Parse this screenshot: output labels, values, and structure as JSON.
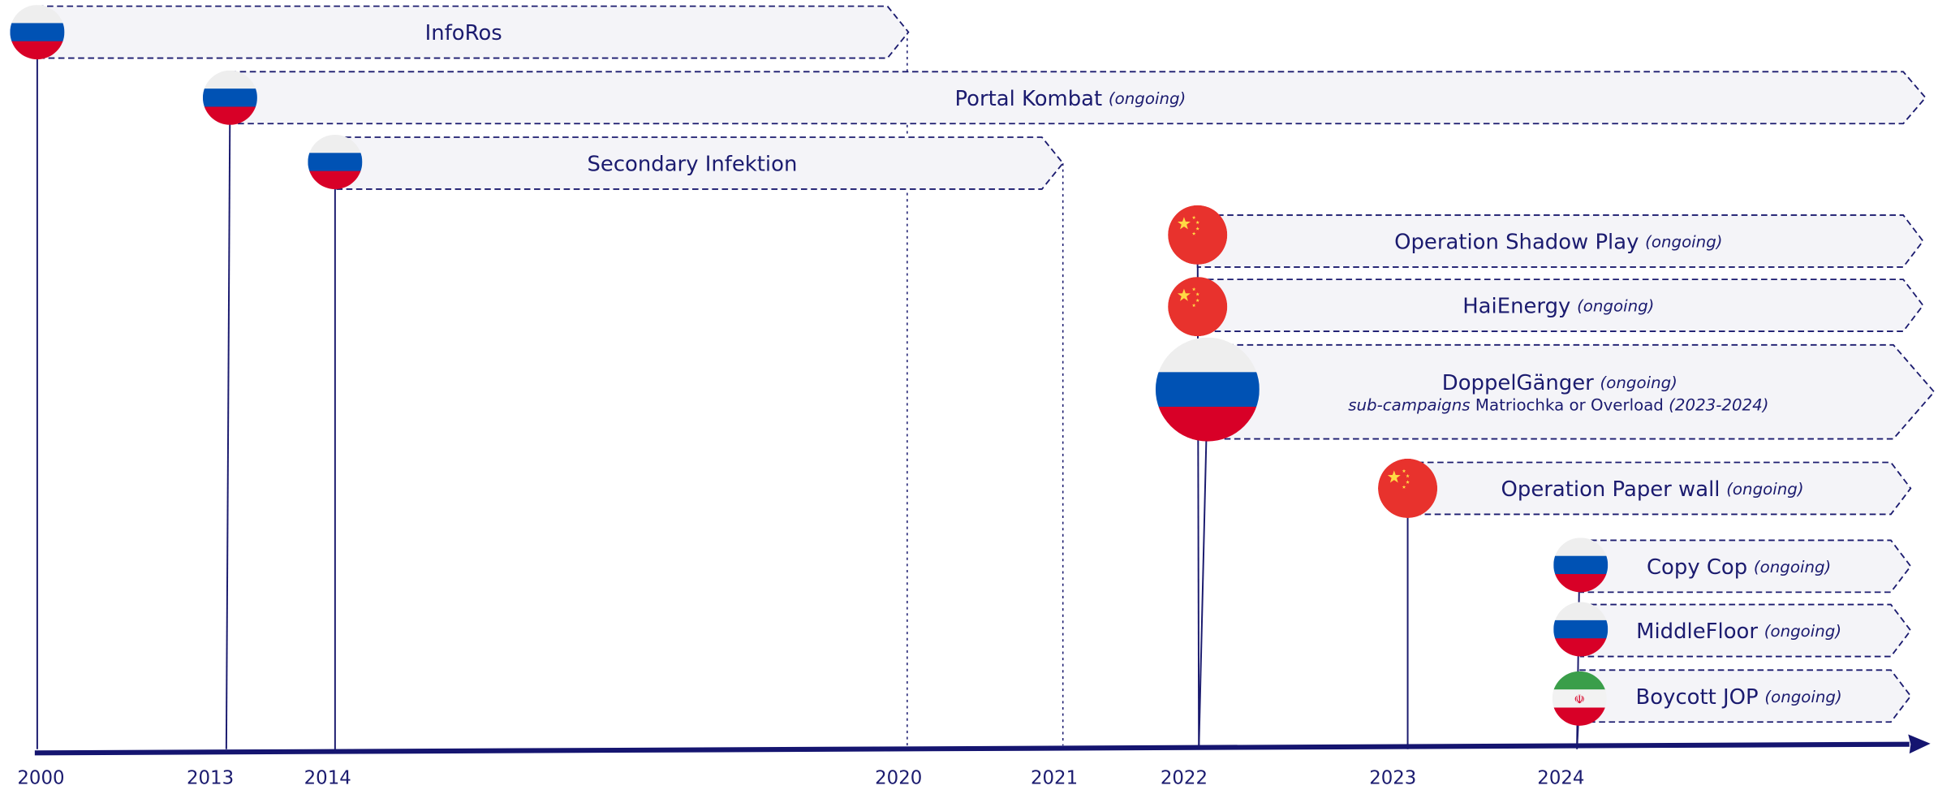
{
  "axis": {
    "years": [
      "2000",
      "2013",
      "2014",
      "2020",
      "2021",
      "2022",
      "2023",
      "2024"
    ]
  },
  "campaigns": [
    {
      "name": "InfoRos"
    },
    {
      "name": "Portal Kombat",
      "status": "(ongoing)"
    },
    {
      "name": "Secondary Infektion"
    },
    {
      "name": "Operation Shadow Play",
      "status": "(ongoing)"
    },
    {
      "name": "HaiEnergy",
      "status": "(ongoing)"
    },
    {
      "name": "DoppelGänger",
      "status": "(ongoing)",
      "detail": {
        "prefix": "sub-campaigns",
        "text": "Matriochka or Overload",
        "period": "(2023-2024)"
      }
    },
    {
      "name": "Operation Paper wall",
      "status": "(ongoing)"
    },
    {
      "name": "Copy Cop",
      "status": "(ongoing)"
    },
    {
      "name": "MiddleFloor",
      "status": "(ongoing)"
    },
    {
      "name": "Boycott JOP",
      "status": "(ongoing)"
    }
  ]
}
